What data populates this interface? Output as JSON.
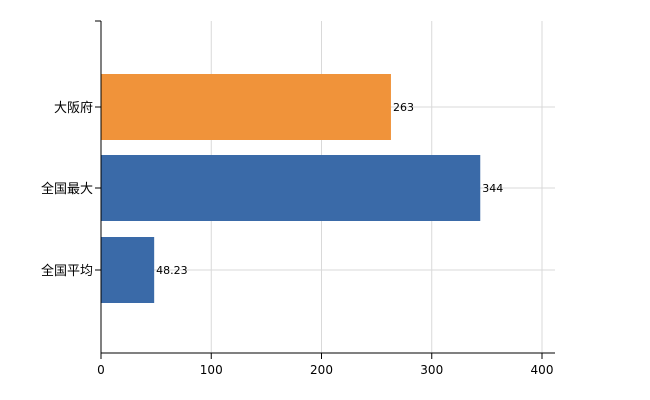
{
  "chart_data": {
    "type": "bar",
    "orientation": "horizontal",
    "categories": [
      "大阪府",
      "全国最大",
      "全国平均"
    ],
    "values": [
      263,
      344,
      48.23
    ],
    "data_labels": [
      "263",
      "344",
      "48.23"
    ],
    "colors": [
      "#f0933a",
      "#3a6aa8",
      "#3a6aa8"
    ],
    "xlim": [
      0,
      400
    ],
    "xticks": [
      0,
      100,
      200,
      300,
      400
    ],
    "xtick_labels": [
      "0",
      "100",
      "200",
      "300",
      "400"
    ],
    "grid": true,
    "grid_color": "#d9d9d9",
    "axis_color": "#000000"
  }
}
